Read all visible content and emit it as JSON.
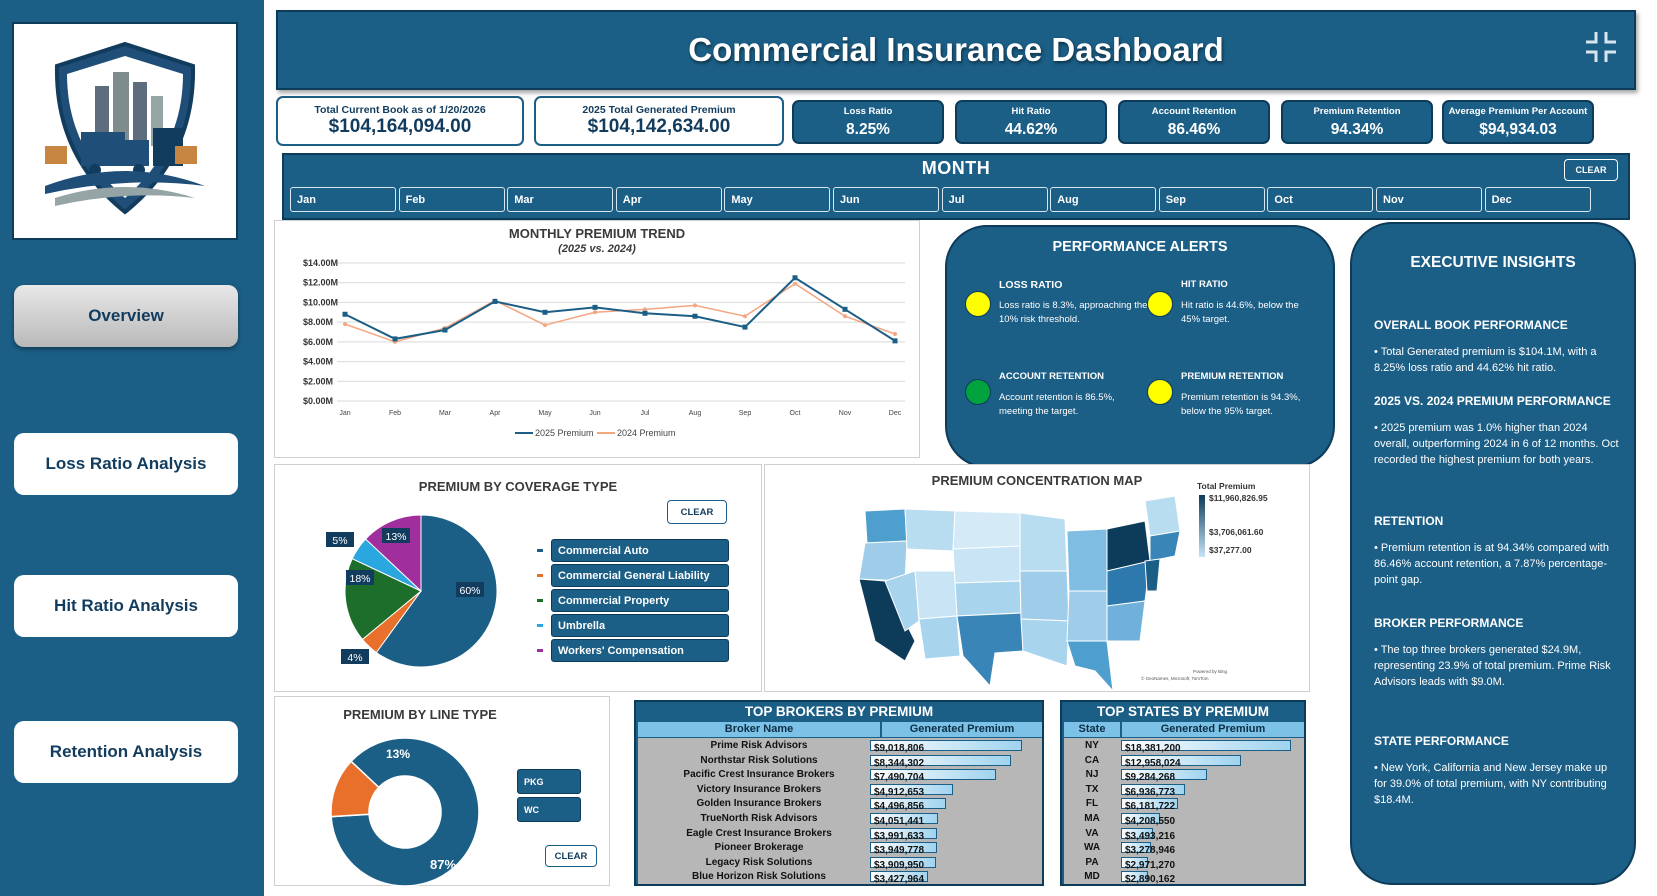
{
  "header": {
    "title": "Commercial Insurance Dashboard"
  },
  "sidebar": {
    "nav": [
      {
        "label": "Overview",
        "active": true
      },
      {
        "label": "Loss Ratio Analysis",
        "active": false
      },
      {
        "label": "Hit Ratio Analysis",
        "active": false
      },
      {
        "label": "Retention Analysis",
        "active": false
      }
    ]
  },
  "kpis": {
    "book_label": "Total Current Book as of 1/20/2026",
    "book_value": "$104,164,094.00",
    "premium_label": "2025 Total Generated Premium",
    "premium_value": "$104,142,634.00",
    "loss_ratio_label": "Loss Ratio",
    "loss_ratio_value": "8.25%",
    "hit_ratio_label": "Hit Ratio",
    "hit_ratio_value": "44.62%",
    "acct_ret_label": "Account Retention",
    "acct_ret_value": "86.46%",
    "prem_ret_label": "Premium Retention",
    "prem_ret_value": "94.34%",
    "avg_prem_label": "Average Premium Per Account",
    "avg_prem_value": "$94,934.03"
  },
  "month_slicer": {
    "title": "MONTH",
    "clear_label": "CLEAR",
    "months": [
      "Jan",
      "Feb",
      "Mar",
      "Apr",
      "May",
      "Jun",
      "Jul",
      "Aug",
      "Sep",
      "Oct",
      "Nov",
      "Dec"
    ]
  },
  "trend": {
    "title": "MONTHLY PREMIUM TREND",
    "subtitle": "(2025 vs. 2024)"
  },
  "alerts": {
    "title": "PERFORMANCE ALERTS",
    "items": [
      {
        "heading": "LOSS RATIO",
        "text": "Loss ratio is 8.3%, approaching the 10% risk threshold.",
        "color": "#ffff00"
      },
      {
        "heading": "HIT RATIO",
        "text": "Hit ratio is 44.6%, below the 45% target.",
        "color": "#ffff00"
      },
      {
        "heading": "ACCOUNT RETENTION",
        "text": "Account retention is 86.5%, meeting the target.",
        "color": "#00a33e"
      },
      {
        "heading": "PREMIUM RETENTION",
        "text": "Premium retention is 94.3%, below the 95% target.",
        "color": "#ffff00"
      }
    ]
  },
  "insights": {
    "title": "EXECUTIVE INSIGHTS",
    "sections": [
      {
        "heading": "OVERALL BOOK PERFORMANCE",
        "text": "• Total Generated premium is $104.1M, with a 8.25% loss ratio and 44.62% hit ratio."
      },
      {
        "heading": "2025 VS. 2024 PREMIUM PERFORMANCE",
        "text": "• 2025 premium was 1.0% higher than 2024 overall, outperforming 2024 in 6 of 12 months. Oct recorded the highest premium for both years."
      },
      {
        "heading": "RETENTION",
        "text": "• Premium retention is at 94.34% compared with 86.46% account retention, a 7.87% percentage-point gap."
      },
      {
        "heading": "BROKER PERFORMANCE",
        "text": "• The top three brokers generated $24.9M, representing 23.9% of total premium. Prime Risk Advisors leads with $9.0M."
      },
      {
        "heading": "STATE PERFORMANCE",
        "text": "• New York, California and New Jersey make up for 39.0% of total premium, with NY contributing $18.4M."
      }
    ]
  },
  "coverage": {
    "title": "PREMIUM BY COVERAGE TYPE",
    "clear_label": "CLEAR",
    "slice_labels": [
      "60%",
      "4%",
      "18%",
      "5%",
      "13%"
    ],
    "legend": [
      {
        "label": "Commercial Auto",
        "color": "#1b5e86"
      },
      {
        "label": "Commercial General Liability",
        "color": "#e8702a"
      },
      {
        "label": "Commercial Property",
        "color": "#1e6e2b"
      },
      {
        "label": "Umbrella",
        "color": "#2aa7df"
      },
      {
        "label": "Workers' Compensation",
        "color": "#a02e9c"
      }
    ]
  },
  "line_type": {
    "title": "PREMIUM BY LINE TYPE",
    "clear_label": "CLEAR",
    "buttons": [
      "PKG",
      "WC"
    ],
    "slice_labels": [
      "87%",
      "13%"
    ]
  },
  "map": {
    "title": "PREMIUM CONCENTRATION MAP",
    "legend_title": "Total Premium",
    "legend_max": "$11,960,826.95",
    "legend_mid": "$3,706,061.60",
    "legend_min": "$37,277.00",
    "credit_1": "Powered by Bing",
    "credit_2": "© GeoNames, Microsoft, TomTom"
  },
  "brokers": {
    "title": "TOP BROKERS BY PREMIUM",
    "col1": "Broker Name",
    "col2": "Generated Premium",
    "rows": [
      {
        "name": "Prime Risk Advisors",
        "value": "$9,018,806",
        "amount": 9018806
      },
      {
        "name": "Northstar Risk Solutions",
        "value": "$8,344,302",
        "amount": 8344302
      },
      {
        "name": "Pacific Crest Insurance Brokers",
        "value": "$7,490,704",
        "amount": 7490704
      },
      {
        "name": "Victory Insurance Brokers",
        "value": "$4,912,653",
        "amount": 4912653
      },
      {
        "name": "Golden Insurance Brokers",
        "value": "$4,496,856",
        "amount": 4496856
      },
      {
        "name": "TrueNorth Risk Advisors",
        "value": "$4,051,441",
        "amount": 4051441
      },
      {
        "name": "Eagle Crest Insurance Brokers",
        "value": "$3,991,633",
        "amount": 3991633
      },
      {
        "name": "Pioneer Brokerage",
        "value": "$3,949,778",
        "amount": 3949778
      },
      {
        "name": "Legacy Risk Solutions",
        "value": "$3,909,950",
        "amount": 3909950
      },
      {
        "name": "Blue Horizon Risk Solutions",
        "value": "$3,427,964",
        "amount": 3427964
      }
    ]
  },
  "states": {
    "title": "TOP STATES BY PREMIUM",
    "col1": "State",
    "col2": "Generated Premium",
    "rows": [
      {
        "name": "NY",
        "value": "$18,381,200",
        "amount": 18381200
      },
      {
        "name": "CA",
        "value": "$12,958,024",
        "amount": 12958024
      },
      {
        "name": "NJ",
        "value": "$9,284,268",
        "amount": 9284268
      },
      {
        "name": "TX",
        "value": "$6,936,773",
        "amount": 6936773
      },
      {
        "name": "FL",
        "value": "$6,181,722",
        "amount": 6181722
      },
      {
        "name": "MA",
        "value": "$4,208,550",
        "amount": 4208550
      },
      {
        "name": "VA",
        "value": "$3,493,216",
        "amount": 3493216
      },
      {
        "name": "WA",
        "value": "$3,278,946",
        "amount": 3278946
      },
      {
        "name": "PA",
        "value": "$2,971,270",
        "amount": 2971270
      },
      {
        "name": "MD",
        "value": "$2,890,162",
        "amount": 2890162
      }
    ]
  },
  "chart_data": [
    {
      "type": "line",
      "title": "MONTHLY PREMIUM TREND",
      "subtitle": "(2025 vs. 2024)",
      "categories": [
        "Jan",
        "Feb",
        "Mar",
        "Apr",
        "May",
        "Jun",
        "Jul",
        "Aug",
        "Sep",
        "Oct",
        "Nov",
        "Dec"
      ],
      "y_ticks": [
        "$0.00M",
        "$2.00M",
        "$4.00M",
        "$6.00M",
        "$8.00M",
        "$10.00M",
        "$12.00M",
        "$14.00M"
      ],
      "ylim": [
        0,
        14
      ],
      "series": [
        {
          "name": "2025 Premium",
          "color": "#1b5e86",
          "values": [
            8.8,
            6.3,
            7.2,
            10.1,
            9.0,
            9.5,
            8.9,
            8.6,
            7.5,
            12.5,
            9.3,
            6.1
          ]
        },
        {
          "name": "2024 Premium",
          "color": "#f4a582",
          "values": [
            7.8,
            6.0,
            7.4,
            10.2,
            7.7,
            9.0,
            9.3,
            9.7,
            8.6,
            11.9,
            8.6,
            6.8
          ]
        }
      ],
      "grid": true,
      "legend": "bottom"
    },
    {
      "type": "pie",
      "title": "PREMIUM BY COVERAGE TYPE",
      "categories": [
        "Commercial Auto",
        "Commercial General Liability",
        "Commercial Property",
        "Umbrella",
        "Workers' Compensation"
      ],
      "values": [
        60,
        4,
        18,
        5,
        13
      ],
      "legend": "right"
    },
    {
      "type": "pie",
      "title": "PREMIUM BY LINE TYPE",
      "categories": [
        "PKG",
        "WC"
      ],
      "values": [
        87,
        13
      ]
    }
  ]
}
